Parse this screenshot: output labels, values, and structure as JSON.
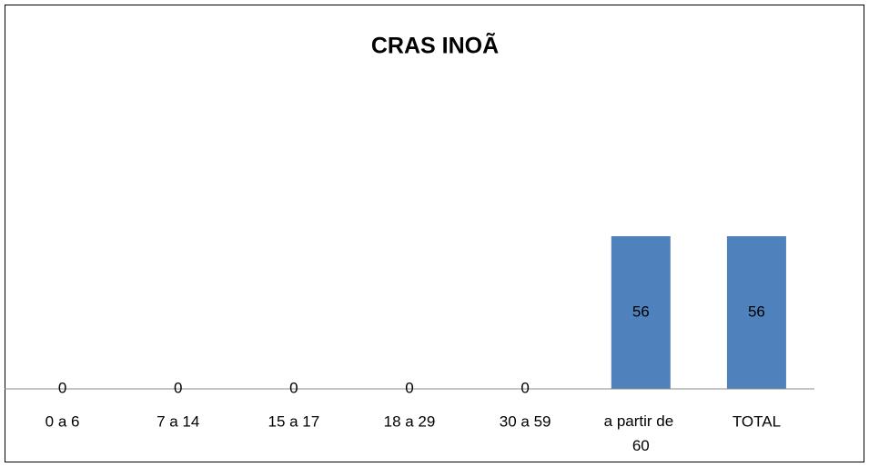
{
  "chart_data": {
    "type": "bar",
    "title": "CRAS INOÃ",
    "categories": [
      "0 a 6",
      "7 a 14",
      "15 a 17",
      "18 a 29",
      "30 a 59",
      "a partir de 60",
      "TOTAL"
    ],
    "values": [
      0,
      0,
      0,
      0,
      0,
      56,
      56
    ],
    "color": "#4f81bd"
  }
}
